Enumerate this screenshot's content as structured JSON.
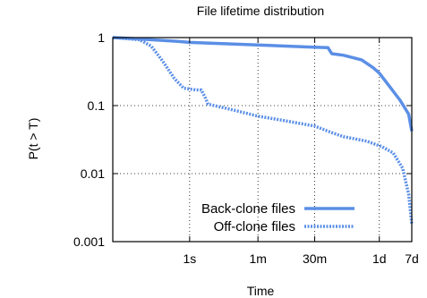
{
  "chart_data": {
    "type": "line",
    "title": "File lifetime distribution",
    "xlabel": "Time",
    "ylabel": "P(t > T)",
    "x_scale": "log",
    "y_scale": "log",
    "xlim_seconds": [
      0.01,
      604800
    ],
    "ylim": [
      0.001,
      1
    ],
    "grid": true,
    "legend_position": "bottom-right",
    "x_ticks": [
      {
        "label": "1s",
        "value_seconds": 1
      },
      {
        "label": "1m",
        "value_seconds": 60
      },
      {
        "label": "30m",
        "value_seconds": 1800
      },
      {
        "label": "1d",
        "value_seconds": 86400
      },
      {
        "label": "7d",
        "value_seconds": 604800
      }
    ],
    "y_ticks": [
      {
        "label": "1",
        "value": 1
      },
      {
        "label": "0.1",
        "value": 0.1
      },
      {
        "label": "0.01",
        "value": 0.01
      },
      {
        "label": "0.001",
        "value": 0.001
      }
    ],
    "series": [
      {
        "name": "Back-clone files",
        "style": "solid",
        "color": "#5b8fe6",
        "points": [
          [
            0.01,
            1.0
          ],
          [
            0.03,
            0.97
          ],
          [
            0.1,
            0.93
          ],
          [
            0.5,
            0.88
          ],
          [
            1,
            0.85
          ],
          [
            10,
            0.81
          ],
          [
            100,
            0.77
          ],
          [
            1000,
            0.73
          ],
          [
            4000,
            0.71
          ],
          [
            5000,
            0.58
          ],
          [
            10000,
            0.55
          ],
          [
            30000,
            0.47
          ],
          [
            60000,
            0.36
          ],
          [
            86400,
            0.3
          ],
          [
            150000,
            0.2
          ],
          [
            300000,
            0.12
          ],
          [
            500000,
            0.075
          ],
          [
            604800,
            0.042
          ]
        ]
      },
      {
        "name": "Off-clone files",
        "style": "dotted",
        "color": "#5b8fe6",
        "points": [
          [
            0.01,
            1.0
          ],
          [
            0.05,
            0.93
          ],
          [
            0.1,
            0.75
          ],
          [
            0.2,
            0.45
          ],
          [
            0.4,
            0.25
          ],
          [
            0.7,
            0.18
          ],
          [
            1.5,
            0.17
          ],
          [
            2,
            0.17
          ],
          [
            2.5,
            0.135
          ],
          [
            3,
            0.105
          ],
          [
            10,
            0.09
          ],
          [
            60,
            0.07
          ],
          [
            300,
            0.06
          ],
          [
            1800,
            0.05
          ],
          [
            5000,
            0.04
          ],
          [
            10000,
            0.035
          ],
          [
            40000,
            0.03
          ],
          [
            100000,
            0.025
          ],
          [
            200000,
            0.02
          ],
          [
            350000,
            0.012
          ],
          [
            500000,
            0.005
          ],
          [
            604800,
            0.0018
          ]
        ]
      }
    ]
  }
}
